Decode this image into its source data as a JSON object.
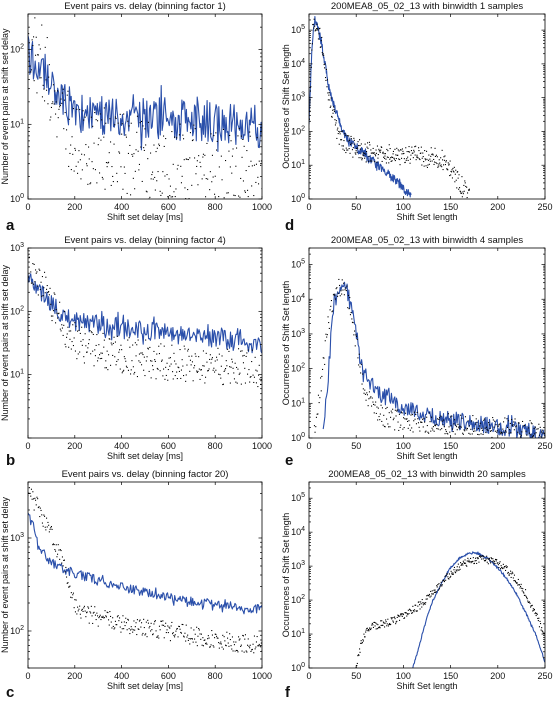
{
  "chart_data": [
    {
      "panel": "a",
      "type": "line",
      "title": "Event pairs vs. delay (binning factor 1)",
      "xlabel": "Shift set delay [ms]",
      "ylabel": "Number of event pairs at shift set delay",
      "xlim": [
        0,
        1000
      ],
      "ylim": [
        1,
        300
      ],
      "yscale": "log",
      "xticks": [
        0,
        200,
        400,
        600,
        800,
        1000
      ],
      "yticks": [
        {
          "v": 1,
          "base": "10",
          "exp": "0"
        },
        {
          "v": 10,
          "base": "10",
          "exp": "1"
        },
        {
          "v": 100,
          "base": "10",
          "exp": "2"
        }
      ],
      "series": [
        {
          "style": "line",
          "color": "#2a4faa",
          "x": [
            0,
            40,
            80,
            120,
            160,
            200,
            300,
            400,
            500,
            600,
            700,
            800,
            900,
            1000
          ],
          "y": [
            90,
            50,
            35,
            25,
            20,
            15,
            13,
            12,
            12,
            12,
            11,
            11,
            10,
            9
          ],
          "noise": 0.28,
          "seed": 11
        },
        {
          "style": "dots",
          "color": "#000000",
          "x": [
            0,
            40,
            80,
            120,
            160,
            200,
            300,
            400,
            500,
            600,
            700,
            800,
            900,
            1000
          ],
          "y": [
            160,
            90,
            45,
            22,
            12,
            6,
            5,
            4,
            3.5,
            3,
            3,
            2.5,
            2.5,
            2
          ],
          "noise": 0.55,
          "seed": 12
        }
      ]
    },
    {
      "panel": "d",
      "type": "line",
      "title": "200MEA8_05_02_13 with binwidth 1 samples",
      "xlabel": "Shift Set length",
      "ylabel": "Occurrences of Shift Set length",
      "xlim": [
        0,
        250
      ],
      "ylim": [
        1,
        300000
      ],
      "yscale": "log",
      "xticks": [
        0,
        50,
        100,
        150,
        200,
        250
      ],
      "yticks": [
        {
          "v": 1,
          "base": "10",
          "exp": "0"
        },
        {
          "v": 10,
          "base": "10",
          "exp": "1"
        },
        {
          "v": 100,
          "base": "10",
          "exp": "2"
        },
        {
          "v": 1000,
          "base": "10",
          "exp": "3"
        },
        {
          "v": 10000,
          "base": "10",
          "exp": "4"
        },
        {
          "v": 100000,
          "base": "10",
          "exp": "5"
        }
      ],
      "series": [
        {
          "style": "line",
          "color": "#2a4faa",
          "x": [
            0,
            3,
            6,
            9,
            12,
            16,
            20,
            25,
            30,
            35,
            40,
            50,
            60,
            70,
            80,
            90,
            100,
            108
          ],
          "y": [
            200,
            30000,
            200000,
            150000,
            60000,
            15000,
            3000,
            800,
            300,
            120,
            60,
            35,
            20,
            12,
            6,
            4,
            2,
            1.2
          ],
          "noise": 0.12,
          "seed": 21
        },
        {
          "style": "dots",
          "color": "#000000",
          "x": [
            0,
            4,
            8,
            12,
            16,
            20,
            25,
            30,
            40,
            60,
            80,
            100,
            120,
            140,
            150,
            160,
            170
          ],
          "y": [
            150,
            80000,
            170000,
            60000,
            12000,
            2000,
            400,
            100,
            40,
            25,
            22,
            20,
            18,
            15,
            8,
            3,
            1
          ],
          "noise": 0.3,
          "seed": 22
        }
      ]
    },
    {
      "panel": "b",
      "type": "line",
      "title": "Event pairs vs. delay (binning factor 4)",
      "xlabel": "Shift set delay [ms]",
      "ylabel": "Number of event pairs at shift set delay",
      "xlim": [
        0,
        1000
      ],
      "ylim": [
        1,
        1000
      ],
      "yscale": "log",
      "xticks": [
        0,
        200,
        400,
        600,
        800,
        1000
      ],
      "yticks": [
        {
          "v": 10,
          "base": "10",
          "exp": "1"
        },
        {
          "v": 100,
          "base": "10",
          "exp": "2"
        },
        {
          "v": 1000,
          "base": "10",
          "exp": "3"
        }
      ],
      "series": [
        {
          "style": "line",
          "color": "#2a4faa",
          "x": [
            0,
            40,
            80,
            120,
            160,
            200,
            300,
            400,
            500,
            600,
            700,
            800,
            900,
            1000
          ],
          "y": [
            400,
            250,
            160,
            110,
            85,
            70,
            60,
            55,
            50,
            45,
            40,
            37,
            33,
            30
          ],
          "noise": 0.15,
          "seed": 31
        },
        {
          "style": "dots",
          "color": "#000000",
          "x": [
            0,
            40,
            80,
            120,
            160,
            200,
            300,
            400,
            500,
            600,
            700,
            800,
            900,
            1000
          ],
          "y": [
            600,
            380,
            200,
            100,
            55,
            35,
            25,
            20,
            18,
            16,
            15,
            14,
            13,
            12
          ],
          "noise": 0.3,
          "seed": 32
        }
      ]
    },
    {
      "panel": "e",
      "type": "line",
      "title": "200MEA8_05_02_13 with binwidth 4 samples",
      "xlabel": "Shift Set length",
      "ylabel": "Occurrences of Shift Set length",
      "xlim": [
        0,
        250
      ],
      "ylim": [
        1,
        300000
      ],
      "yscale": "log",
      "xticks": [
        0,
        50,
        100,
        150,
        200,
        250
      ],
      "yticks": [
        {
          "v": 1,
          "base": "10",
          "exp": "0"
        },
        {
          "v": 10,
          "base": "10",
          "exp": "1"
        },
        {
          "v": 100,
          "base": "10",
          "exp": "2"
        },
        {
          "v": 1000,
          "base": "10",
          "exp": "3"
        },
        {
          "v": 10000,
          "base": "10",
          "exp": "4"
        },
        {
          "v": 100000,
          "base": "10",
          "exp": "5"
        }
      ],
      "series": [
        {
          "style": "line",
          "color": "#2a4faa",
          "x": [
            15,
            20,
            25,
            30,
            35,
            40,
            45,
            50,
            55,
            60,
            65,
            70,
            80,
            100,
            120,
            140,
            160,
            180,
            200,
            220,
            240,
            250
          ],
          "y": [
            1,
            50,
            3000,
            20000,
            30000,
            18000,
            5000,
            900,
            150,
            60,
            40,
            25,
            15,
            8,
            5,
            4,
            3,
            2.5,
            2,
            1.7,
            1.4,
            1.2
          ],
          "noise": 0.25,
          "seed": 41
        },
        {
          "style": "dots",
          "color": "#000000",
          "x": [
            5,
            10,
            15,
            20,
            25,
            30,
            35,
            40,
            45,
            50,
            55,
            60,
            70,
            80,
            100,
            150,
            200,
            250
          ],
          "y": [
            1,
            10,
            100,
            1500,
            8000,
            22000,
            25000,
            15000,
            4000,
            600,
            100,
            20,
            6,
            4,
            3,
            2.5,
            2,
            1.5
          ],
          "noise": 0.3,
          "seed": 42
        }
      ]
    },
    {
      "panel": "c",
      "type": "line",
      "title": "Event pairs vs. delay (binning factor 20)",
      "xlabel": "Shift set delay [ms]",
      "ylabel": "Number of event pairs at shift set delay",
      "xlim": [
        0,
        1000
      ],
      "ylim": [
        40,
        4000
      ],
      "yscale": "log",
      "xticks": [
        0,
        200,
        400,
        600,
        800,
        1000
      ],
      "yticks": [
        {
          "v": 100,
          "base": "10",
          "exp": "2"
        },
        {
          "v": 1000,
          "base": "10",
          "exp": "3"
        }
      ],
      "series": [
        {
          "style": "line",
          "color": "#2a4faa",
          "x": [
            0,
            20,
            40,
            80,
            120,
            160,
            200,
            300,
            400,
            500,
            600,
            700,
            800,
            900,
            1000
          ],
          "y": [
            2000,
            1300,
            900,
            600,
            500,
            450,
            420,
            350,
            300,
            260,
            230,
            210,
            195,
            180,
            170
          ],
          "noise": 0.05,
          "seed": 51
        },
        {
          "style": "dots",
          "color": "#000000",
          "x": [
            0,
            40,
            80,
            120,
            160,
            200,
            240,
            300,
            400,
            500,
            600,
            700,
            800,
            900,
            1000
          ],
          "y": [
            3000,
            2200,
            1400,
            800,
            450,
            200,
            160,
            140,
            120,
            110,
            100,
            90,
            80,
            75,
            70
          ],
          "noise": 0.1,
          "seed": 52
        }
      ]
    },
    {
      "panel": "f",
      "type": "line",
      "title": "200MEA8_05_02_13 with binwidth 20 samples",
      "xlabel": "Shift Set length",
      "ylabel": "Occurrences of Shift Set length",
      "xlim": [
        0,
        250
      ],
      "ylim": [
        1,
        300000
      ],
      "yscale": "log",
      "xticks": [
        0,
        50,
        100,
        150,
        200,
        250
      ],
      "yticks": [
        {
          "v": 1,
          "base": "10",
          "exp": "0"
        },
        {
          "v": 10,
          "base": "10",
          "exp": "1"
        },
        {
          "v": 100,
          "base": "10",
          "exp": "2"
        },
        {
          "v": 1000,
          "base": "10",
          "exp": "3"
        },
        {
          "v": 10000,
          "base": "10",
          "exp": "4"
        },
        {
          "v": 100000,
          "base": "10",
          "exp": "5"
        }
      ],
      "series": [
        {
          "style": "line",
          "color": "#2a4faa",
          "x": [
            110,
            115,
            120,
            125,
            130,
            140,
            150,
            160,
            170,
            175,
            180,
            190,
            200,
            210,
            220,
            230,
            240,
            245,
            250
          ],
          "y": [
            1,
            3,
            10,
            30,
            80,
            300,
            900,
            1800,
            2400,
            2500,
            2300,
            1600,
            900,
            400,
            150,
            40,
            10,
            4,
            1.5
          ],
          "noise": 0.03,
          "seed": 61
        },
        {
          "style": "dots",
          "color": "#000000",
          "x": [
            50,
            55,
            60,
            70,
            80,
            90,
            100,
            110,
            120,
            130,
            140,
            150,
            160,
            170,
            180,
            190,
            200,
            210,
            220,
            230,
            240,
            250
          ],
          "y": [
            1,
            5,
            12,
            18,
            20,
            25,
            35,
            50,
            80,
            150,
            300,
            600,
            1000,
            1400,
            1600,
            1500,
            1200,
            800,
            400,
            150,
            40,
            8
          ],
          "noise": 0.12,
          "seed": 62
        }
      ]
    }
  ]
}
